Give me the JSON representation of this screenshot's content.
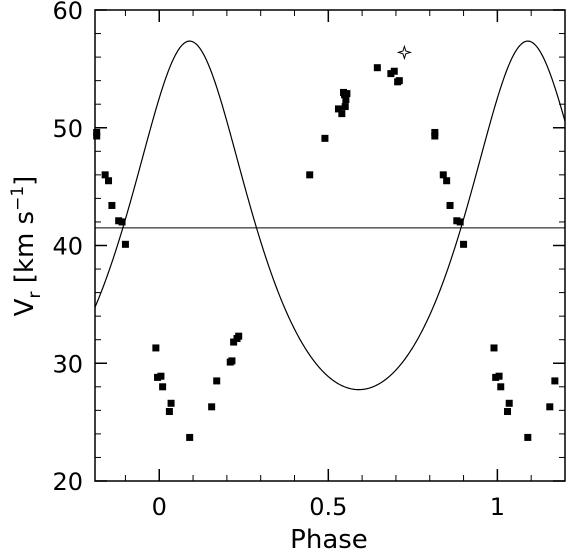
{
  "chart_data": {
    "type": "scatter",
    "title": "",
    "xlabel": "Phase",
    "ylabel_main": "V",
    "ylabel_sub": "r",
    "ylabel_units": " [km s",
    "ylabel_exp": "−1",
    "ylabel_close": "]",
    "xlim": [
      -0.19,
      1.2
    ],
    "ylim": [
      20,
      60
    ],
    "x_ticks": [
      0,
      0.5,
      1
    ],
    "x_tick_labels": [
      "0",
      "0.5",
      "1"
    ],
    "y_ticks": [
      20,
      30,
      40,
      50,
      60
    ],
    "y_tick_labels": [
      "20",
      "30",
      "40",
      "50",
      "60"
    ],
    "gamma_velocity": 41.5,
    "fit_curve": {
      "gamma": 39.6,
      "K": 14.8,
      "e": 0.2,
      "omega_deg": 0,
      "T0_phase": 0.09
    },
    "series": [
      {
        "marker": "filled-square",
        "points": [
          [
            -0.185,
            49.6
          ],
          [
            -0.185,
            49.3
          ],
          [
            -0.16,
            46.0
          ],
          [
            -0.15,
            45.5
          ],
          [
            -0.14,
            43.4
          ],
          [
            -0.12,
            42.1
          ],
          [
            -0.11,
            42.0
          ],
          [
            -0.1,
            40.1
          ],
          [
            -0.01,
            31.3
          ],
          [
            -0.005,
            28.8
          ],
          [
            0.005,
            28.9
          ],
          [
            0.01,
            28.0
          ],
          [
            0.03,
            25.9
          ],
          [
            0.035,
            26.6
          ],
          [
            0.09,
            23.7
          ],
          [
            0.155,
            26.3
          ],
          [
            0.17,
            28.5
          ],
          [
            0.21,
            30.1
          ],
          [
            0.215,
            30.2
          ],
          [
            0.22,
            31.8
          ],
          [
            0.23,
            32.1
          ],
          [
            0.235,
            32.3
          ],
          [
            0.445,
            46.0
          ],
          [
            0.49,
            49.1
          ],
          [
            0.53,
            51.6
          ],
          [
            0.54,
            51.2
          ],
          [
            0.545,
            53.0
          ],
          [
            0.548,
            52.8
          ],
          [
            0.55,
            51.8
          ],
          [
            0.552,
            52.4
          ],
          [
            0.555,
            52.9
          ],
          [
            0.645,
            55.1
          ],
          [
            0.685,
            54.6
          ],
          [
            0.695,
            54.8
          ],
          [
            0.705,
            53.9
          ],
          [
            0.71,
            54.0
          ],
          [
            0.815,
            49.6
          ],
          [
            0.815,
            49.3
          ],
          [
            0.84,
            46.0
          ],
          [
            0.85,
            45.5
          ],
          [
            0.86,
            43.4
          ],
          [
            0.88,
            42.1
          ],
          [
            0.89,
            42.0
          ],
          [
            0.9,
            40.1
          ],
          [
            0.99,
            31.3
          ],
          [
            0.995,
            28.8
          ],
          [
            1.005,
            28.9
          ],
          [
            1.01,
            28.0
          ],
          [
            1.03,
            25.9
          ],
          [
            1.035,
            26.6
          ],
          [
            1.09,
            23.7
          ],
          [
            1.155,
            26.3
          ],
          [
            1.17,
            28.5
          ]
        ]
      },
      {
        "marker": "open-star",
        "points": [
          [
            0.725,
            56.4
          ]
        ]
      }
    ],
    "grid": false,
    "legend": "none"
  }
}
